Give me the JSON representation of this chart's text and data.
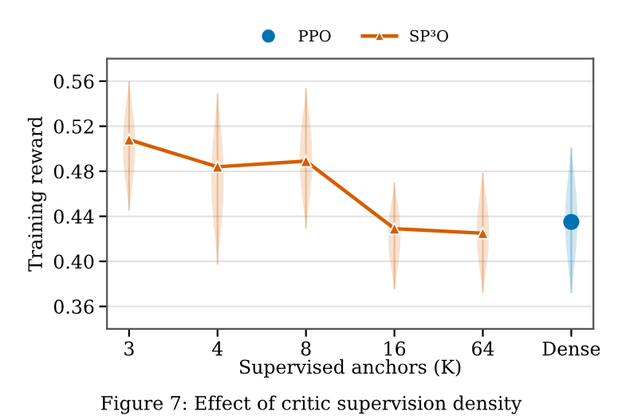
{
  "chart_data": {
    "type": "line",
    "xlabel": "Supervised anchors (K)",
    "ylabel": "Training reward",
    "categories": [
      "3",
      "4",
      "8",
      "16",
      "64",
      "Dense"
    ],
    "series": [
      {
        "name": "PPO",
        "type": "scatter",
        "color": "#0072b2",
        "marker": "circle",
        "values": [
          null,
          null,
          null,
          null,
          null,
          0.435
        ],
        "errors": [
          null,
          null,
          null,
          null,
          null,
          [
            0.372,
            0.501
          ]
        ]
      },
      {
        "name": "SP³O",
        "color": "#d55e00",
        "marker": "triangle",
        "values": [
          0.508,
          0.484,
          0.489,
          0.429,
          0.425,
          null
        ],
        "errors": [
          [
            0.445,
            0.56
          ],
          [
            0.397,
            0.549
          ],
          [
            0.429,
            0.554
          ],
          [
            0.375,
            0.47
          ],
          [
            0.372,
            0.479
          ],
          null
        ]
      }
    ],
    "ylim": [
      0.34,
      0.58
    ],
    "yticks": [
      0.36,
      {
        "value": 0.4,
        "label": "0.40"
      },
      0.44,
      0.48,
      0.52,
      0.56
    ],
    "grid": "y",
    "legend": "top",
    "annotations": [
      "Figure 7: Effect of critic supervision density"
    ]
  }
}
